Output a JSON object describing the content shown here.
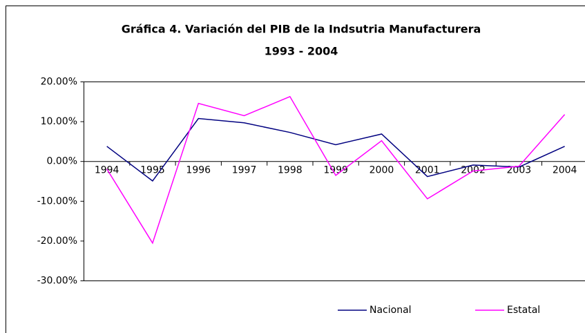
{
  "chart_data": {
    "type": "line",
    "title": [
      "Gráfica 4. Variación del PIB de la Indsutria Manufacturera",
      "1993 - 2004"
    ],
    "categories": [
      "1994",
      "1995",
      "1996",
      "1997",
      "1998",
      "1999",
      "2000",
      "2001",
      "2002",
      "2003",
      "2004"
    ],
    "series": [
      {
        "name": "Nacional",
        "color": "#000080",
        "values": [
          3.8,
          -4.9,
          10.8,
          9.7,
          7.3,
          4.2,
          6.9,
          -3.8,
          -0.9,
          -1.4,
          3.8
        ]
      },
      {
        "name": "Estatal",
        "color": "#ff00ff",
        "values": [
          -1.9,
          -20.5,
          14.6,
          11.5,
          16.3,
          -3.5,
          5.2,
          -9.4,
          -2.4,
          -1.2,
          11.8
        ]
      }
    ],
    "ylim": [
      -30,
      20
    ],
    "yticks": [
      {
        "value": -30,
        "label": "-30.00%"
      },
      {
        "value": -20,
        "label": "-20.00%"
      },
      {
        "value": -10,
        "label": "-10.00%"
      },
      {
        "value": 0,
        "label": "0.00%"
      },
      {
        "value": 10,
        "label": "10.00%"
      },
      {
        "value": 20,
        "label": "20.00%"
      }
    ],
    "legend": "bottom"
  }
}
